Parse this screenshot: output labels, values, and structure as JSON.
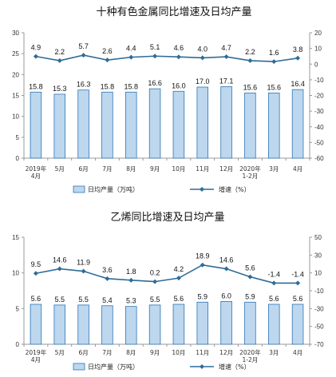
{
  "colors": {
    "bar_fill": "#bdd7ee",
    "bar_stroke": "#2e75b6",
    "line": "#2e6c97",
    "axis": "#999999"
  },
  "chart_data": [
    {
      "type": "bar",
      "title": "十种有色金属同比增速及日均产量",
      "categories": [
        "2019年\n4月",
        "5月",
        "6月",
        "7月",
        "8月",
        "9月",
        "10月",
        "11月",
        "12月",
        "2020年\n1-2月",
        "3月",
        "4月"
      ],
      "ylim": [
        0,
        30
      ],
      "y2lim": [
        -60,
        20
      ],
      "yticks": [
        0,
        5,
        10,
        15,
        20,
        25,
        30
      ],
      "y2ticks": [
        -60,
        -50,
        -40,
        -30,
        -20,
        -10,
        0,
        10,
        20
      ],
      "grid": false,
      "legend_position": "bottom",
      "series": [
        {
          "name": "日均产量（万吨）",
          "type": "bar",
          "axis": "left",
          "values": [
            15.8,
            15.3,
            16.3,
            15.8,
            15.8,
            16.6,
            16.0,
            17.0,
            17.1,
            15.6,
            15.6,
            16.4
          ]
        },
        {
          "name": "增速（%）",
          "type": "line",
          "axis": "right",
          "values": [
            4.9,
            2.2,
            5.7,
            2.6,
            4.4,
            5.1,
            4.6,
            4.0,
            4.7,
            2.2,
            1.6,
            3.8
          ]
        }
      ]
    },
    {
      "type": "bar",
      "title": "乙烯同比增速及日均产量",
      "categories": [
        "2019年\n4月",
        "5月",
        "6月",
        "7月",
        "8月",
        "9月",
        "10月",
        "11月",
        "12月",
        "2020年\n1-2月",
        "3月",
        "4月"
      ],
      "ylim": [
        0,
        15
      ],
      "y2lim": [
        -70,
        50
      ],
      "yticks": [
        0,
        5,
        10,
        15
      ],
      "y2ticks": [
        -70,
        -50,
        -30,
        -10,
        10,
        30,
        50
      ],
      "grid": false,
      "legend_position": "bottom",
      "series": [
        {
          "name": "日均产量（万吨）",
          "type": "bar",
          "axis": "left",
          "values": [
            5.6,
            5.5,
            5.5,
            5.4,
            5.3,
            5.5,
            5.6,
            5.9,
            6.0,
            5.9,
            5.6,
            5.6
          ]
        },
        {
          "name": "增速（%）",
          "type": "line",
          "axis": "right",
          "values": [
            9.5,
            14.6,
            11.9,
            3.6,
            1.8,
            0.2,
            4.2,
            18.9,
            14.6,
            5.6,
            -1.4,
            -1.4
          ]
        }
      ]
    }
  ]
}
